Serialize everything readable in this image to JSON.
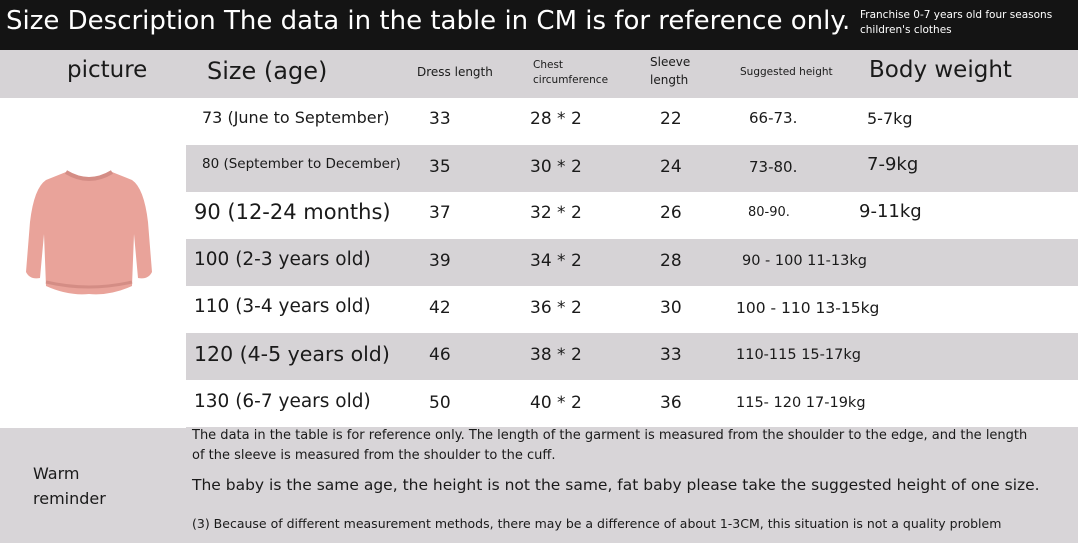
{
  "header": {
    "title": "Size Description The data in the table in CM is for reference only.",
    "brand_line1": "Franchise 0-7 years old four seasons",
    "brand_line2": "children's clothes"
  },
  "columns": {
    "picture": "picture",
    "size": "Size (age)",
    "dress_length": "Dress length",
    "chest_line1": "Chest",
    "chest_line2": "circumference",
    "sleeve_line1": "Sleeve",
    "sleeve_line2": "length",
    "height": "Suggested height",
    "weight": "Body weight"
  },
  "rows": [
    {
      "size": "73 (June to September)",
      "dress": "33",
      "chest": "28 * 2",
      "sleeve": "22",
      "height": "66-73.",
      "weight": "5-7kg"
    },
    {
      "size": "80 (September to December)",
      "dress": "35",
      "chest": "30 * 2",
      "sleeve": "24",
      "height": "73-80.",
      "weight": "7-9kg"
    },
    {
      "size": "90 (12-24 months)",
      "dress": "37",
      "chest": "32 * 2",
      "sleeve": "26",
      "height": "80-90.",
      "weight": "9-11kg"
    },
    {
      "size": "100 (2-3 years old)",
      "dress": "39",
      "chest": "34 * 2",
      "sleeve": "28",
      "height": "90 - 100 11-13kg",
      "weight": ""
    },
    {
      "size": "110 (3-4 years old)",
      "dress": "42",
      "chest": "36 * 2",
      "sleeve": "30",
      "height": "100 - 110 13-15kg",
      "weight": ""
    },
    {
      "size": "120 (4-5 years old)",
      "dress": "46",
      "chest": "38 * 2",
      "sleeve": "33",
      "height": "110-115 15-17kg",
      "weight": ""
    },
    {
      "size": "130 (6-7 years old)",
      "dress": "50",
      "chest": "40 * 2",
      "sleeve": "36",
      "height": "115- 120 17-19kg",
      "weight": ""
    }
  ],
  "reminder": {
    "label_line1": "Warm",
    "label_line2": "reminder",
    "note1": "The data in the table is for reference only. The length of the garment is measured from the shoulder to the edge, and the length of the sleeve is measured from the shoulder to the cuff.",
    "note2": "The baby is the same age, the height is not the same, fat baby please take the suggested height of one size.",
    "note3": "(3) Because of different measurement methods, there may be a difference of about 1-3CM, this situation is not a quality problem"
  },
  "colors": {
    "header_bg": "#141414",
    "row_gray": "#d6d3d6",
    "row_white": "#ffffff",
    "sweater_pink": "#e9a39a"
  },
  "image": {
    "subject": "sweater-icon"
  }
}
